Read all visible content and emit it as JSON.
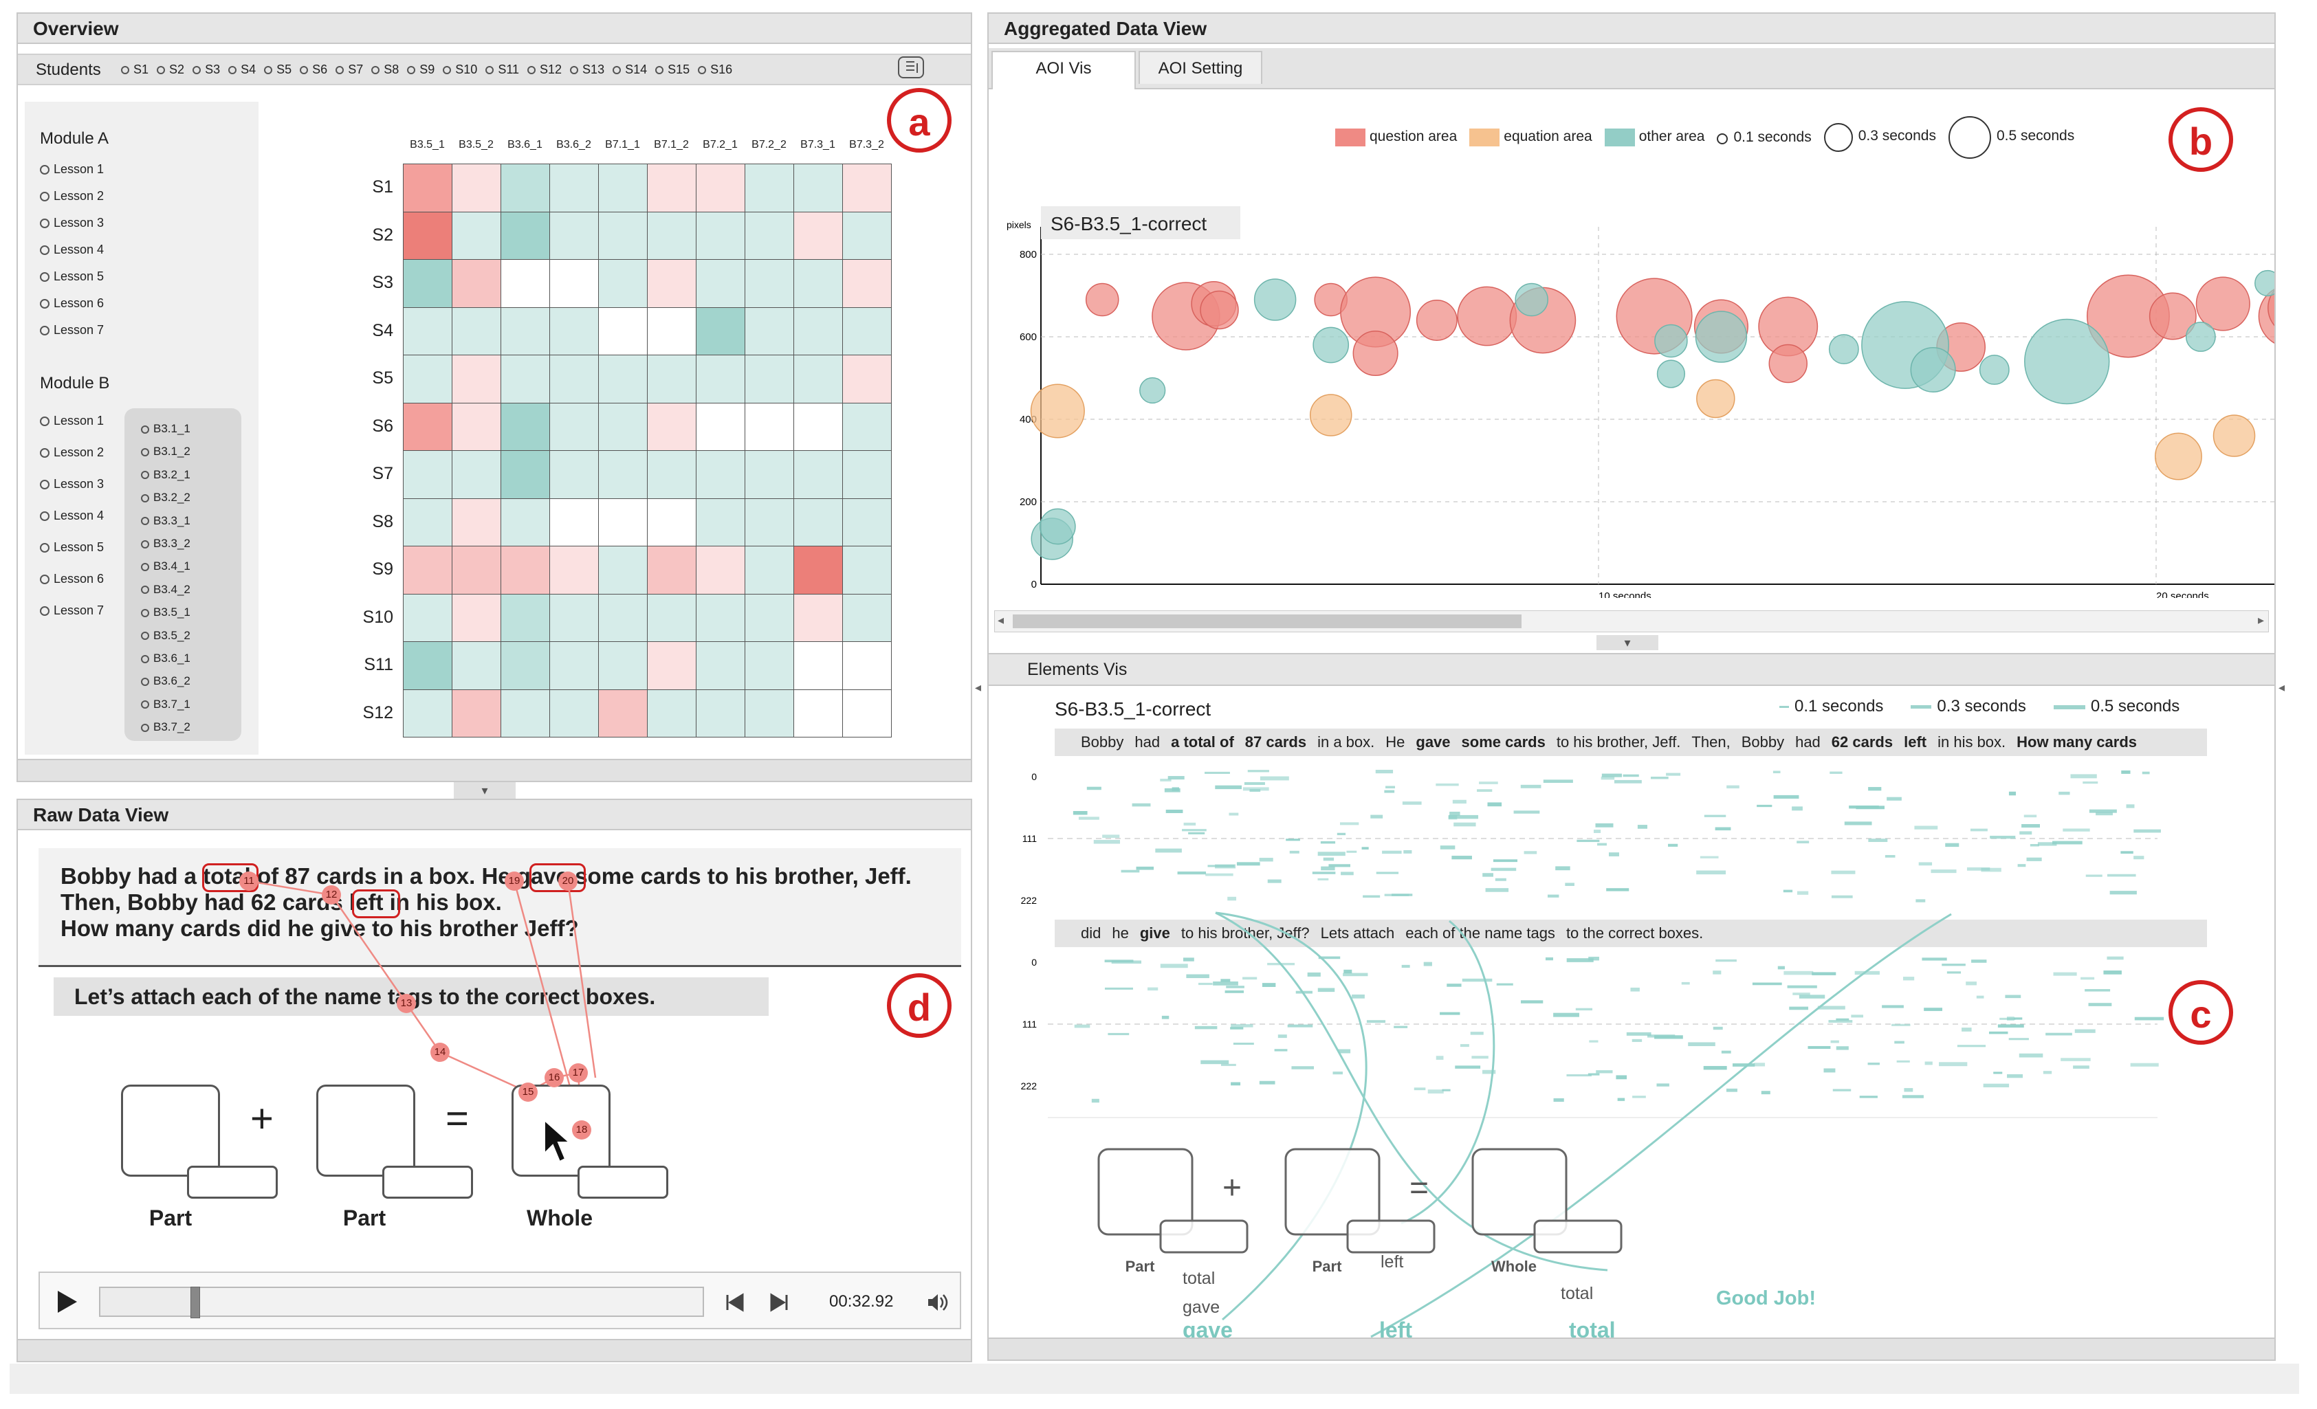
{
  "colors": {
    "question": "#ef8a84",
    "equation": "#f6c28f",
    "other": "#93cdc6",
    "badge": "#d42020",
    "teal": "#7cc8bf"
  },
  "overview": {
    "title": "Overview",
    "students_label": "Students",
    "students": [
      "S1",
      "S2",
      "S3",
      "S4",
      "S5",
      "S6",
      "S7",
      "S8",
      "S9",
      "S10",
      "S11",
      "S12",
      "S13",
      "S14",
      "S15",
      "S16"
    ],
    "badge": "a",
    "moduleA": {
      "title": "Module A",
      "lessons": [
        "Lesson 1",
        "Lesson 2",
        "Lesson 3",
        "Lesson 4",
        "Lesson 5",
        "Lesson 6",
        "Lesson 7"
      ]
    },
    "moduleB": {
      "title": "Module B",
      "lessons": [
        "Lesson 1",
        "Lesson 2",
        "Lesson 3",
        "Lesson 4",
        "Lesson 5",
        "Lesson 6",
        "Lesson 7"
      ],
      "problems": [
        "B3.1_1",
        "B3.1_2",
        "B3.2_1",
        "B3.2_2",
        "B3.3_1",
        "B3.3_2",
        "B3.4_1",
        "B3.4_2",
        "B3.5_1",
        "B3.5_2",
        "B3.6_1",
        "B3.6_2",
        "B3.7_1",
        "B3.7_2"
      ]
    },
    "heatmap": {
      "cols": [
        "B3.5_1",
        "B3.5_2",
        "B3.6_1",
        "B3.6_2",
        "B7.1_1",
        "B7.1_2",
        "B7.2_1",
        "B7.2_2",
        "B7.3_1",
        "B7.3_2"
      ],
      "rows": [
        "S1",
        "S2",
        "S3",
        "S4",
        "S5",
        "S6",
        "S7",
        "S8",
        "S9",
        "S10",
        "S11",
        "S12"
      ],
      "cells": [
        [
          "r3",
          "r1",
          "t2",
          "t1",
          "t1",
          "r1",
          "r1",
          "t1",
          "t1",
          "r1"
        ],
        [
          "r4",
          "t1",
          "t3",
          "t1",
          "t1",
          "t1",
          "t1",
          "t1",
          "r1",
          "t1"
        ],
        [
          "t3",
          "r2",
          "w",
          "w",
          "t1",
          "r1",
          "t1",
          "t1",
          "t1",
          "r1"
        ],
        [
          "t1",
          "t1",
          "t1",
          "t1",
          "w",
          "w",
          "t3",
          "t1",
          "t1",
          "t1"
        ],
        [
          "t1",
          "r1",
          "t1",
          "t1",
          "t1",
          "t1",
          "t1",
          "t1",
          "t1",
          "r1"
        ],
        [
          "r3",
          "r1",
          "t3",
          "t1",
          "t1",
          "r1",
          "w",
          "w",
          "w",
          "t1"
        ],
        [
          "t1",
          "t1",
          "t3",
          "t1",
          "t1",
          "t1",
          "t1",
          "t1",
          "t1",
          "t1"
        ],
        [
          "t1",
          "r1",
          "t1",
          "w",
          "w",
          "w",
          "t1",
          "t1",
          "t1",
          "t1"
        ],
        [
          "r2",
          "r2",
          "r2",
          "r1",
          "t1",
          "r2",
          "r1",
          "t1",
          "r4",
          "t1"
        ],
        [
          "t1",
          "r1",
          "t2",
          "t1",
          "t1",
          "t1",
          "t1",
          "t1",
          "r1",
          "t1"
        ],
        [
          "t3",
          "t1",
          "t2",
          "t1",
          "t1",
          "r1",
          "t1",
          "t1",
          "w",
          "w"
        ],
        [
          "t1",
          "r2",
          "t1",
          "t1",
          "r2",
          "t1",
          "t1",
          "t1",
          "w",
          "w"
        ]
      ]
    }
  },
  "raw": {
    "title": "Raw Data View",
    "badge": "d",
    "q_line1": "Bobby had a total of 87 cards in a box. He gave some cards to his brother, Jeff.",
    "q_line2": "Then, Bobby had 62 cards left in his box.",
    "q_line3": "How many cards did he give to his brother Jeff?",
    "instruction": "Let’s attach each of the name tags to the correct boxes.",
    "box_labels": [
      "Part",
      "Part",
      "Whole"
    ],
    "plus": "+",
    "equals": "=",
    "tags": {
      "total": "total",
      "gave": "gave",
      "left": "left"
    },
    "markers": [
      "11",
      "12",
      "13",
      "14",
      "15",
      "16",
      "17",
      "18",
      "19",
      "20"
    ],
    "time": "00:32.92",
    "progress": 0.15
  },
  "agg": {
    "title": "Aggregated Data View",
    "tabs": [
      "AOI Vis",
      "AOI Setting"
    ],
    "badge": "b",
    "legend": [
      "question area",
      "equation area",
      "other area",
      "0.1 seconds",
      "0.3 seconds",
      "0.5 seconds"
    ],
    "chart_title": "S6-B3.5_1-correct",
    "y_unit": "pixels",
    "y_ticks": [
      "800",
      "600",
      "400",
      "200",
      "0"
    ],
    "x_ticks": [
      "10 seconds",
      "20 seconds"
    ]
  },
  "chart_data": {
    "type": "scatter",
    "title": "S6-B3.5_1-correct",
    "ylabel": "pixels",
    "ylim": [
      0,
      800
    ],
    "xlim": [
      0,
      22.5
    ],
    "x_unit": "seconds",
    "series": [
      {
        "name": "question area",
        "points": [
          [
            1.1,
            690,
            0.08
          ],
          [
            2.6,
            650,
            0.48
          ],
          [
            3.1,
            680,
            0.18
          ],
          [
            3.2,
            665,
            0.12
          ],
          [
            5.2,
            690,
            0.08
          ],
          [
            6.0,
            660,
            0.52
          ],
          [
            6.0,
            560,
            0.18
          ],
          [
            7.1,
            640,
            0.14
          ],
          [
            8.0,
            650,
            0.35
          ],
          [
            9.0,
            640,
            0.45
          ],
          [
            11.0,
            650,
            0.62
          ],
          [
            12.2,
            625,
            0.28
          ],
          [
            13.4,
            625,
            0.35
          ],
          [
            13.4,
            535,
            0.12
          ],
          [
            16.5,
            575,
            0.22
          ],
          [
            19.5,
            650,
            0.75
          ],
          [
            20.3,
            650,
            0.2
          ],
          [
            21.2,
            680,
            0.28
          ],
          [
            22.4,
            650,
            0.4
          ],
          [
            22.5,
            670,
            0.3
          ]
        ]
      },
      {
        "name": "equation area",
        "points": [
          [
            0.3,
            420,
            0.28
          ],
          [
            5.2,
            410,
            0.15
          ],
          [
            12.1,
            450,
            0.12
          ],
          [
            20.4,
            310,
            0.2
          ],
          [
            21.4,
            360,
            0.15
          ]
        ]
      },
      {
        "name": "other area",
        "points": [
          [
            0.2,
            110,
            0.15
          ],
          [
            0.3,
            140,
            0.1
          ],
          [
            2.0,
            470,
            0.04
          ],
          [
            4.2,
            690,
            0.15
          ],
          [
            5.2,
            580,
            0.1
          ],
          [
            8.8,
            690,
            0.08
          ],
          [
            11.3,
            590,
            0.08
          ],
          [
            11.3,
            510,
            0.05
          ],
          [
            12.2,
            600,
            0.25
          ],
          [
            14.4,
            570,
            0.06
          ],
          [
            15.5,
            580,
            0.85
          ],
          [
            16.0,
            520,
            0.18
          ],
          [
            17.1,
            520,
            0.06
          ],
          [
            18.4,
            540,
            0.8
          ],
          [
            20.8,
            600,
            0.06
          ],
          [
            22.0,
            730,
            0.04
          ]
        ]
      }
    ]
  },
  "elem": {
    "title": "Elements Vis",
    "badge": "c",
    "chart_title": "S6-B3.5_1-correct",
    "legend": [
      "0.1 seconds",
      "0.3 seconds",
      "0.5 seconds"
    ],
    "line1_words": [
      "Bobby",
      "had",
      "a total of",
      "87 cards",
      "in a box.",
      "He",
      "gave",
      "some cards",
      "to his brother, Jeff.",
      "Then,",
      "Bobby",
      "had",
      "62 cards",
      "left",
      "in his box.",
      "How many cards"
    ],
    "line2_words": [
      "did",
      "he",
      "give",
      "to his brother, Jeff?",
      "Lets attach",
      "each of the name tags",
      "to the correct boxes."
    ],
    "y_ticks": [
      "0",
      "111",
      "222"
    ],
    "box_labels": [
      "Part",
      "Part",
      "Whole"
    ],
    "plus": "+",
    "equals": "=",
    "small_tags": [
      "total",
      "gave",
      "left",
      "total"
    ],
    "big_tags": [
      "gave",
      "left",
      "total"
    ],
    "good_job": "Good Job!"
  }
}
